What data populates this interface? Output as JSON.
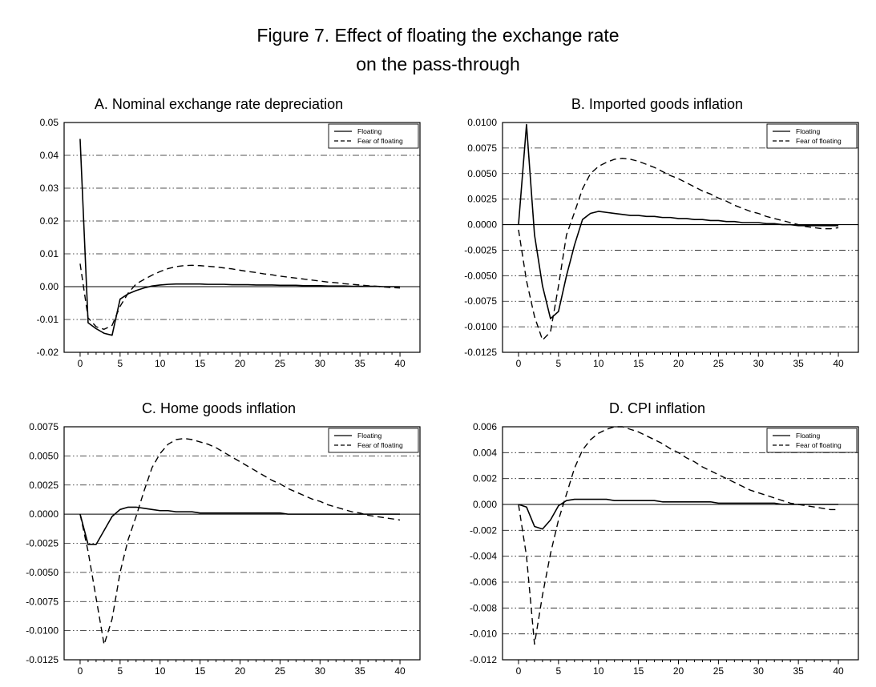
{
  "figure": {
    "title_line1": "Figure 7. Effect of floating the exchange rate",
    "title_line2": "on the pass-through"
  },
  "colors": {
    "line": "#000000",
    "grid": "#1a1a1a",
    "text": "#000000",
    "background": "#ffffff"
  },
  "legend": {
    "items": [
      "Floating",
      "Fear of floating"
    ],
    "position": "top-right"
  },
  "chart_data": [
    {
      "id": "A",
      "type": "line",
      "title": "A. Nominal exchange rate depreciation",
      "xlabel": "",
      "ylabel": "",
      "grid": "dash-dot",
      "legend_position": "top-right",
      "xlim": [
        -2,
        42.5
      ],
      "ylim": [
        -0.02,
        0.05
      ],
      "xticks": [
        0,
        5,
        10,
        15,
        20,
        25,
        30,
        35,
        40
      ],
      "yticks": [
        -0.02,
        -0.01,
        0,
        0.01,
        0.02,
        0.03,
        0.04,
        0.05
      ],
      "ytick_labels": [
        "-0.02",
        "-0.01",
        "0.00",
        "0.01",
        "0.02",
        "0.03",
        "0.04",
        "0.05"
      ],
      "x": [
        0,
        1,
        2,
        3,
        4,
        5,
        6,
        7,
        8,
        9,
        10,
        11,
        12,
        13,
        14,
        15,
        16,
        17,
        18,
        19,
        20,
        21,
        22,
        23,
        24,
        25,
        26,
        27,
        28,
        29,
        30,
        31,
        32,
        33,
        34,
        35,
        36,
        37,
        38,
        39,
        40
      ],
      "series": [
        {
          "name": "Floating",
          "style": "solid",
          "values": [
            0.045,
            -0.011,
            -0.0128,
            -0.0142,
            -0.0148,
            -0.0038,
            -0.0022,
            -0.0012,
            -0.0004,
            0.0002,
            0.0005,
            0.0007,
            0.0008,
            0.0008,
            0.0008,
            0.0008,
            0.0007,
            0.0007,
            0.0007,
            0.0006,
            0.0006,
            0.0006,
            0.0005,
            0.0005,
            0.0005,
            0.0004,
            0.0004,
            0.0004,
            0.0003,
            0.0003,
            0.0003,
            0.0002,
            0.0002,
            0.0002,
            0.0001,
            0.0001,
            0.0001,
            0.0001,
            0.0,
            0.0,
            0.0
          ]
        },
        {
          "name": "Fear of floating",
          "style": "dashed",
          "values": [
            0.007,
            -0.0095,
            -0.0122,
            -0.013,
            -0.0118,
            -0.006,
            -0.002,
            0.0008,
            0.0022,
            0.0035,
            0.0046,
            0.0055,
            0.0061,
            0.0064,
            0.0065,
            0.0064,
            0.0062,
            0.006,
            0.0057,
            0.0054,
            0.005,
            0.0046,
            0.0043,
            0.0039,
            0.0036,
            0.0032,
            0.0029,
            0.0026,
            0.0023,
            0.002,
            0.0017,
            0.0014,
            0.0012,
            0.0009,
            0.0007,
            0.0005,
            0.0003,
            0.0001,
            -0.0001,
            -0.0003,
            -0.0004
          ]
        }
      ]
    },
    {
      "id": "B",
      "type": "line",
      "title": "B. Imported goods inflation",
      "xlabel": "",
      "ylabel": "",
      "grid": "dash-dot",
      "legend_position": "top-right",
      "xlim": [
        -2,
        42.5
      ],
      "ylim": [
        -0.0125,
        0.01
      ],
      "xticks": [
        0,
        5,
        10,
        15,
        20,
        25,
        30,
        35,
        40
      ],
      "yticks": [
        -0.0125,
        -0.01,
        -0.0075,
        -0.005,
        -0.0025,
        0,
        0.0025,
        0.005,
        0.0075,
        0.01
      ],
      "ytick_labels": [
        "-0.0125",
        "-0.0100",
        "-0.0075",
        "-0.0050",
        "-0.0025",
        "0.0000",
        "0.0025",
        "0.0050",
        "0.0075",
        "0.0100"
      ],
      "x": [
        0,
        1,
        2,
        3,
        4,
        5,
        6,
        7,
        8,
        9,
        10,
        11,
        12,
        13,
        14,
        15,
        16,
        17,
        18,
        19,
        20,
        21,
        22,
        23,
        24,
        25,
        26,
        27,
        28,
        29,
        30,
        31,
        32,
        33,
        34,
        35,
        36,
        37,
        38,
        39,
        40
      ],
      "series": [
        {
          "name": "Floating",
          "style": "solid",
          "values": [
            0.0,
            0.0098,
            -0.001,
            -0.006,
            -0.0092,
            -0.0085,
            -0.005,
            -0.002,
            0.0005,
            0.0011,
            0.0013,
            0.0012,
            0.0011,
            0.001,
            0.0009,
            0.0009,
            0.0008,
            0.0008,
            0.0007,
            0.0007,
            0.0006,
            0.0006,
            0.0005,
            0.0005,
            0.0004,
            0.0004,
            0.0003,
            0.0003,
            0.0002,
            0.0002,
            0.0002,
            0.0001,
            0.0001,
            0.0,
            0.0,
            -0.0001,
            -0.0001,
            -0.0001,
            -0.0001,
            -0.0001,
            -0.0001
          ]
        },
        {
          "name": "Fear of floating",
          "style": "dashed",
          "values": [
            -0.0005,
            -0.0055,
            -0.009,
            -0.0113,
            -0.0105,
            -0.006,
            -0.001,
            0.0012,
            0.0035,
            0.005,
            0.0057,
            0.0061,
            0.0064,
            0.0065,
            0.0064,
            0.0062,
            0.0059,
            0.0056,
            0.0052,
            0.0048,
            0.0045,
            0.0041,
            0.0037,
            0.0033,
            0.003,
            0.0026,
            0.0023,
            0.0019,
            0.0016,
            0.0013,
            0.0011,
            0.0008,
            0.0006,
            0.0004,
            0.0002,
            0.0,
            -0.0002,
            -0.0003,
            -0.0004,
            -0.0004,
            -0.0003
          ]
        }
      ]
    },
    {
      "id": "C",
      "type": "line",
      "title": "C. Home goods inflation",
      "xlabel": "",
      "ylabel": "",
      "grid": "dash-dot",
      "legend_position": "top-right",
      "xlim": [
        -2,
        42.5
      ],
      "ylim": [
        -0.0125,
        0.0075
      ],
      "xticks": [
        0,
        5,
        10,
        15,
        20,
        25,
        30,
        35,
        40
      ],
      "yticks": [
        -0.0125,
        -0.01,
        -0.0075,
        -0.005,
        -0.0025,
        0,
        0.0025,
        0.005,
        0.0075
      ],
      "ytick_labels": [
        "-0.0125",
        "-0.0100",
        "-0.0075",
        "-0.0050",
        "-0.0025",
        "0.0000",
        "0.0025",
        "0.0050",
        "0.0075"
      ],
      "x": [
        0,
        1,
        2,
        3,
        4,
        5,
        6,
        7,
        8,
        9,
        10,
        11,
        12,
        13,
        14,
        15,
        16,
        17,
        18,
        19,
        20,
        21,
        22,
        23,
        24,
        25,
        26,
        27,
        28,
        29,
        30,
        31,
        32,
        33,
        34,
        35,
        36,
        37,
        38,
        39,
        40
      ],
      "series": [
        {
          "name": "Floating",
          "style": "solid",
          "values": [
            0.0,
            -0.0026,
            -0.0026,
            -0.0014,
            -0.0002,
            0.0004,
            0.0006,
            0.0006,
            0.0005,
            0.0004,
            0.0003,
            0.0003,
            0.0002,
            0.0002,
            0.0002,
            0.0001,
            0.0001,
            0.0001,
            0.0001,
            0.0001,
            0.0001,
            0.0001,
            0.0001,
            0.0001,
            0.0001,
            0.0001,
            0.0,
            0.0,
            0.0,
            0.0,
            0.0,
            0.0,
            0.0,
            0.0,
            0.0,
            0.0,
            0.0,
            0.0,
            0.0,
            0.0,
            0.0
          ]
        },
        {
          "name": "Fear of floating",
          "style": "dashed",
          "values": [
            0.0,
            -0.0032,
            -0.0072,
            -0.0112,
            -0.009,
            -0.005,
            -0.0022,
            -0.0002,
            0.002,
            0.004,
            0.0052,
            0.006,
            0.0064,
            0.0065,
            0.0064,
            0.0062,
            0.006,
            0.0057,
            0.0053,
            0.0049,
            0.0045,
            0.0041,
            0.0037,
            0.0033,
            0.0029,
            0.0026,
            0.0022,
            0.0019,
            0.0016,
            0.0013,
            0.0011,
            0.0008,
            0.0006,
            0.0004,
            0.0002,
            0.0001,
            -0.0001,
            -0.0002,
            -0.0003,
            -0.0004,
            -0.0005
          ]
        }
      ]
    },
    {
      "id": "D",
      "type": "line",
      "title": "D. CPI inflation",
      "xlabel": "",
      "ylabel": "",
      "grid": "dash-dot",
      "legend_position": "top-right",
      "xlim": [
        -2,
        42.5
      ],
      "ylim": [
        -0.012,
        0.006
      ],
      "xticks": [
        0,
        5,
        10,
        15,
        20,
        25,
        30,
        35,
        40
      ],
      "yticks": [
        -0.012,
        -0.01,
        -0.008,
        -0.006,
        -0.004,
        -0.002,
        0,
        0.002,
        0.004,
        0.006
      ],
      "ytick_labels": [
        "-0.012",
        "-0.010",
        "-0.008",
        "-0.006",
        "-0.004",
        "-0.002",
        "0.000",
        "0.002",
        "0.004",
        "0.006"
      ],
      "x": [
        0,
        1,
        2,
        3,
        4,
        5,
        6,
        7,
        8,
        9,
        10,
        11,
        12,
        13,
        14,
        15,
        16,
        17,
        18,
        19,
        20,
        21,
        22,
        23,
        24,
        25,
        26,
        27,
        28,
        29,
        30,
        31,
        32,
        33,
        34,
        35,
        36,
        37,
        38,
        39,
        40
      ],
      "series": [
        {
          "name": "Floating",
          "style": "solid",
          "values": [
            0.0,
            -0.0002,
            -0.0017,
            -0.0019,
            -0.0012,
            -0.0001,
            0.0003,
            0.0004,
            0.0004,
            0.0004,
            0.0004,
            0.0004,
            0.0003,
            0.0003,
            0.0003,
            0.0003,
            0.0003,
            0.0003,
            0.0002,
            0.0002,
            0.0002,
            0.0002,
            0.0002,
            0.0002,
            0.0002,
            0.0001,
            0.0001,
            0.0001,
            0.0001,
            0.0001,
            0.0001,
            0.0001,
            0.0001,
            0.0,
            0.0,
            0.0,
            0.0,
            0.0,
            0.0,
            0.0,
            0.0
          ]
        },
        {
          "name": "Fear of floating",
          "style": "dashed",
          "values": [
            0.0,
            -0.004,
            -0.0108,
            -0.007,
            -0.0038,
            -0.0012,
            0.0008,
            0.0028,
            0.0042,
            0.005,
            0.0055,
            0.0058,
            0.006,
            0.006,
            0.0058,
            0.0056,
            0.0053,
            0.005,
            0.0047,
            0.0043,
            0.004,
            0.0036,
            0.0033,
            0.0029,
            0.0026,
            0.0023,
            0.002,
            0.0017,
            0.0014,
            0.0011,
            0.0009,
            0.0007,
            0.0005,
            0.0003,
            0.0001,
            0.0,
            -0.0001,
            -0.0002,
            -0.0003,
            -0.0004,
            -0.0004
          ]
        }
      ]
    }
  ]
}
